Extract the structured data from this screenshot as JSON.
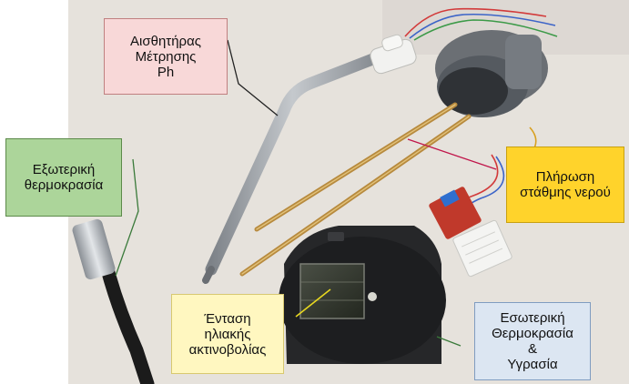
{
  "labels": {
    "ph_sensor": {
      "lines": [
        "Αισθητήρας",
        "Μέτρησης",
        "Ph"
      ],
      "bg": "#f8d8d8",
      "border": "#c08080"
    },
    "external_temperature": {
      "lines": [
        "Εξωτερική",
        "θερμοκρασία"
      ],
      "bg": "#acd59a",
      "border": "#5c8a4a"
    },
    "water_level": {
      "lines": [
        "Πλήρωση",
        "στάθμης νερού"
      ],
      "bg": "#ffd32b",
      "border": "#c8a010"
    },
    "solar_radiation": {
      "lines": [
        "Ένταση",
        "ηλιακής",
        "ακτινοβολίας"
      ],
      "bg": "#fff7c0",
      "border": "#d8c870"
    },
    "internal_temperature_humidity": {
      "lines": [
        "Εσωτερική",
        "Θερμοκρασία",
        "&",
        "Υγρασία"
      ],
      "bg": "#dce6f2",
      "border": "#7f9cc0"
    }
  },
  "colors": {
    "ph_leader": "#222222",
    "external_leader": "#3a7a3a",
    "water_leader": "#c0154a",
    "solar_leader": "#e8d820",
    "internal_leader": "#3a7a3a"
  }
}
